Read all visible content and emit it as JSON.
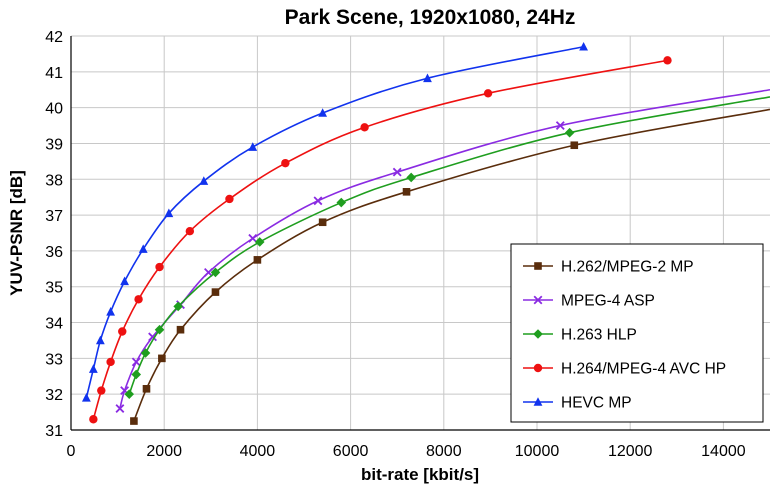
{
  "chart_data": {
    "type": "line",
    "title": "Park Scene, 1920x1080, 24Hz",
    "xlabel": "bit-rate [kbit/s]",
    "ylabel": "YUV-PSNR [dB]",
    "xlim": [
      0,
      15000
    ],
    "ylim": [
      31,
      42
    ],
    "xticks": [
      0,
      2000,
      4000,
      6000,
      8000,
      10000,
      12000,
      14000
    ],
    "yticks": [
      31,
      32,
      33,
      34,
      35,
      36,
      37,
      38,
      39,
      40,
      41,
      42
    ],
    "grid": true,
    "legend_position": "bottom-right",
    "series": [
      {
        "name": "H.262/MPEG-2 MP",
        "color": "#5a2d0c",
        "marker": "square",
        "points": [
          [
            1350,
            31.25
          ],
          [
            1620,
            32.15
          ],
          [
            1950,
            33.0
          ],
          [
            2350,
            33.8
          ],
          [
            3100,
            34.85
          ],
          [
            4000,
            35.75
          ],
          [
            5400,
            36.8
          ],
          [
            7200,
            37.65
          ],
          [
            10800,
            38.95
          ]
        ],
        "curve_end": [
          15000,
          39.95
        ]
      },
      {
        "name": "MPEG-4 ASP",
        "color": "#8a2be2",
        "marker": "x",
        "points": [
          [
            1050,
            31.6
          ],
          [
            1150,
            32.1
          ],
          [
            1400,
            32.9
          ],
          [
            1750,
            33.6
          ],
          [
            2350,
            34.5
          ],
          [
            2950,
            35.4
          ],
          [
            3900,
            36.35
          ],
          [
            5300,
            37.4
          ],
          [
            7000,
            38.2
          ],
          [
            10500,
            39.5
          ]
        ],
        "curve_end": [
          15000,
          40.5
        ]
      },
      {
        "name": "H.263 HLP",
        "color": "#1f9e1f",
        "marker": "diamond",
        "points": [
          [
            1250,
            32.0
          ],
          [
            1400,
            32.55
          ],
          [
            1600,
            33.15
          ],
          [
            1900,
            33.8
          ],
          [
            2300,
            34.45
          ],
          [
            3100,
            35.4
          ],
          [
            4050,
            36.25
          ],
          [
            5800,
            37.35
          ],
          [
            7300,
            38.05
          ],
          [
            10700,
            39.3
          ]
        ],
        "curve_end": [
          15000,
          40.3
        ]
      },
      {
        "name": "H.264/MPEG-4 AVC HP",
        "color": "#ee1111",
        "marker": "circle",
        "points": [
          [
            480,
            31.3
          ],
          [
            650,
            32.1
          ],
          [
            850,
            32.9
          ],
          [
            1100,
            33.75
          ],
          [
            1450,
            34.65
          ],
          [
            1900,
            35.55
          ],
          [
            2550,
            36.55
          ],
          [
            3400,
            37.45
          ],
          [
            4600,
            38.45
          ],
          [
            6300,
            39.45
          ],
          [
            8950,
            40.4
          ],
          [
            12800,
            41.32
          ]
        ]
      },
      {
        "name": "HEVC MP",
        "color": "#1133ee",
        "marker": "triangle",
        "points": [
          [
            330,
            31.9
          ],
          [
            480,
            32.7
          ],
          [
            630,
            33.5
          ],
          [
            850,
            34.3
          ],
          [
            1150,
            35.15
          ],
          [
            1550,
            36.05
          ],
          [
            2100,
            37.05
          ],
          [
            2850,
            37.95
          ],
          [
            3900,
            38.9
          ],
          [
            5400,
            39.85
          ],
          [
            7650,
            40.82
          ],
          [
            11000,
            41.7
          ]
        ]
      }
    ]
  }
}
